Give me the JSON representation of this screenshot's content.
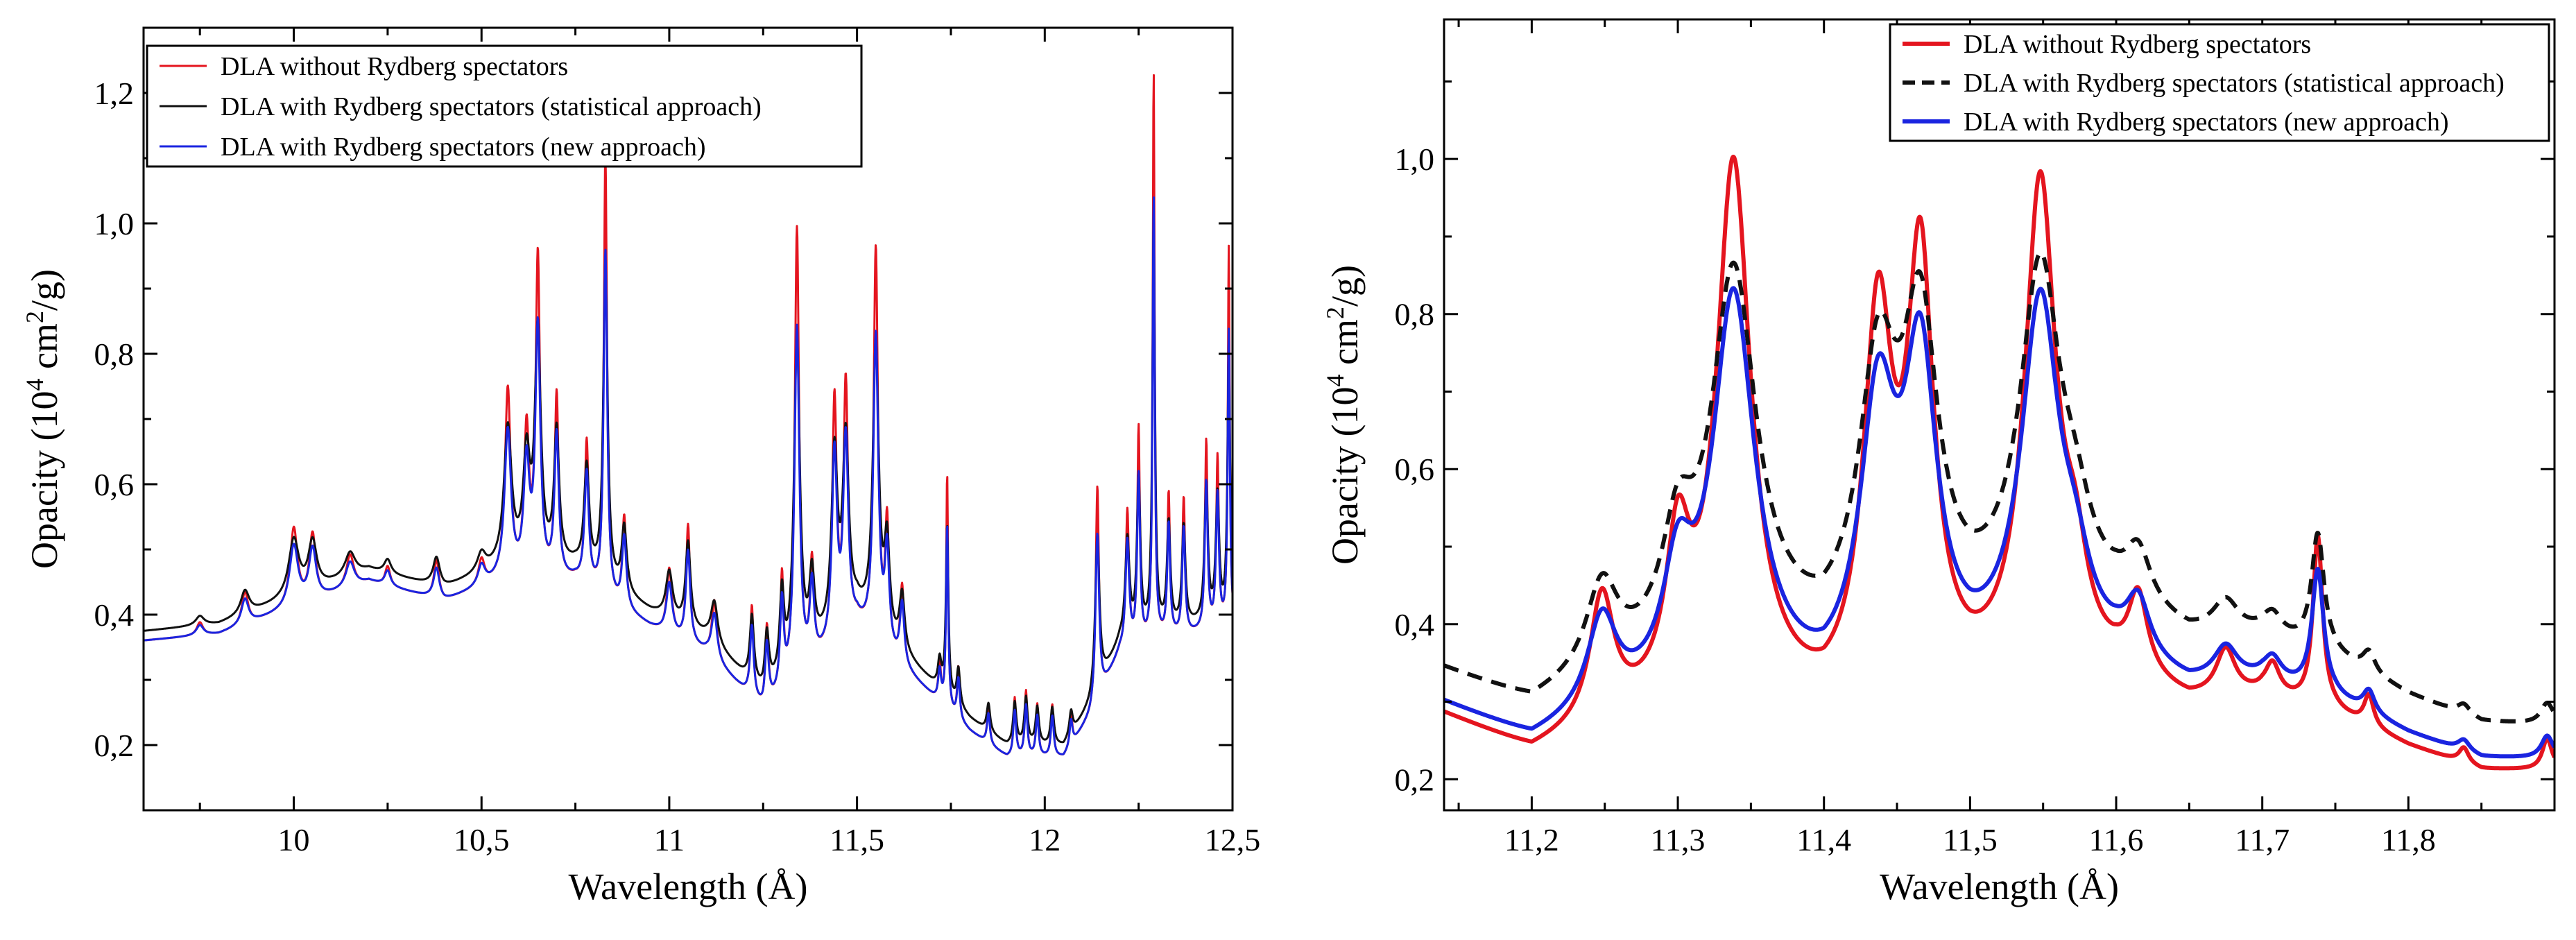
{
  "chart_data": [
    {
      "type": "line",
      "title": "",
      "xlabel": "Wavelength (Å)",
      "ylabel_main": "Opacity (10",
      "ylabel_sup1": "4",
      "ylabel_mid": " cm",
      "ylabel_sup2": "2",
      "ylabel_end": "/g)",
      "xlim": [
        9.6,
        12.5
      ],
      "ylim": [
        0.1,
        1.3
      ],
      "xticks": [
        10,
        10.5,
        11,
        11.5,
        12,
        12.5
      ],
      "xtick_labels": [
        "10",
        "10,5",
        "11",
        "11,5",
        "12",
        "12,5"
      ],
      "yticks": [
        0.2,
        0.4,
        0.6,
        0.8,
        1.0,
        1.2
      ],
      "ytick_labels": [
        "0,2",
        "0,4",
        "0,6",
        "0,8",
        "1,0",
        "1,2"
      ],
      "legend_position": "top-left",
      "baseline": [
        [
          9.6,
          0.36
        ],
        [
          9.8,
          0.37
        ],
        [
          9.95,
          0.4
        ],
        [
          10.2,
          0.45
        ],
        [
          10.4,
          0.42
        ],
        [
          10.55,
          0.45
        ],
        [
          10.75,
          0.45
        ],
        [
          10.95,
          0.38
        ],
        [
          11.1,
          0.34
        ],
        [
          11.25,
          0.25
        ],
        [
          11.35,
          0.3
        ],
        [
          11.5,
          0.38
        ],
        [
          11.65,
          0.3
        ],
        [
          11.8,
          0.22
        ],
        [
          11.9,
          0.18
        ],
        [
          12.05,
          0.18
        ],
        [
          12.12,
          0.24
        ],
        [
          12.2,
          0.34
        ],
        [
          12.3,
          0.36
        ],
        [
          12.5,
          0.38
        ]
      ],
      "peaks": [
        [
          9.75,
          0.02,
          0.01
        ],
        [
          9.87,
          0.05,
          0.01
        ],
        [
          10.0,
          0.12,
          0.012
        ],
        [
          10.05,
          0.1,
          0.01
        ],
        [
          10.15,
          0.05,
          0.012
        ],
        [
          10.25,
          0.03,
          0.008
        ],
        [
          10.38,
          0.06,
          0.008
        ],
        [
          10.5,
          0.04,
          0.01
        ],
        [
          10.57,
          0.29,
          0.009
        ],
        [
          10.62,
          0.22,
          0.008
        ],
        [
          10.65,
          0.49,
          0.007
        ],
        [
          10.7,
          0.28,
          0.006
        ],
        [
          10.78,
          0.22,
          0.006
        ],
        [
          10.83,
          0.68,
          0.005
        ],
        [
          10.88,
          0.14,
          0.006
        ],
        [
          11.0,
          0.1,
          0.008
        ],
        [
          11.05,
          0.18,
          0.006
        ],
        [
          11.12,
          0.09,
          0.008
        ],
        [
          11.22,
          0.14,
          0.005
        ],
        [
          11.26,
          0.12,
          0.005
        ],
        [
          11.3,
          0.17,
          0.005
        ],
        [
          11.34,
          0.69,
          0.007
        ],
        [
          11.38,
          0.15,
          0.006
        ],
        [
          11.44,
          0.37,
          0.007
        ],
        [
          11.47,
          0.38,
          0.007
        ],
        [
          11.55,
          0.6,
          0.007
        ],
        [
          11.58,
          0.19,
          0.006
        ],
        [
          11.62,
          0.12,
          0.006
        ],
        [
          11.72,
          0.06,
          0.004
        ],
        [
          11.74,
          0.36,
          0.003
        ],
        [
          11.77,
          0.08,
          0.004
        ],
        [
          11.85,
          0.06,
          0.004
        ],
        [
          11.92,
          0.09,
          0.004
        ],
        [
          11.95,
          0.1,
          0.004
        ],
        [
          11.98,
          0.08,
          0.004
        ],
        [
          12.02,
          0.08,
          0.004
        ],
        [
          12.07,
          0.05,
          0.004
        ],
        [
          12.14,
          0.33,
          0.005
        ],
        [
          12.22,
          0.21,
          0.005
        ],
        [
          12.25,
          0.33,
          0.004
        ],
        [
          12.29,
          0.87,
          0.003
        ],
        [
          12.33,
          0.22,
          0.004
        ],
        [
          12.37,
          0.21,
          0.004
        ],
        [
          12.43,
          0.29,
          0.004
        ],
        [
          12.46,
          0.26,
          0.004
        ],
        [
          12.49,
          0.58,
          0.003
        ]
      ],
      "series": [
        {
          "name": "DLA without Rydberg spectators",
          "color": "#e4151f",
          "dash": "",
          "width": 3,
          "amp": 1.0,
          "broad": 1.0,
          "shift": 0.0
        },
        {
          "name": "DLA with Rydberg spectators (statistical approach)",
          "color": "#111111",
          "dash": "",
          "width": 3,
          "amp": 0.72,
          "broad": 1.35,
          "shift": 0.03
        },
        {
          "name": "DLA with Rydberg spectators (new approach)",
          "color": "#1a24e0",
          "dash": "",
          "width": 3,
          "amp": 0.78,
          "broad": 1.15,
          "shift": 0.0
        }
      ]
    },
    {
      "type": "line",
      "title": "",
      "xlabel": "Wavelength (Å)",
      "ylabel_main": "Opacity (10",
      "ylabel_sup1": "4",
      "ylabel_mid": " cm",
      "ylabel_sup2": "2",
      "ylabel_end": "/g)",
      "xlim": [
        11.14,
        11.9
      ],
      "ylim": [
        0.16,
        1.18
      ],
      "xticks": [
        11.2,
        11.3,
        11.4,
        11.5,
        11.6,
        11.7,
        11.8
      ],
      "xtick_labels": [
        "11,2",
        "11,3",
        "11,4",
        "11,5",
        "11,6",
        "11,7",
        "11,8"
      ],
      "yticks": [
        0.2,
        0.4,
        0.6,
        0.8,
        1.0
      ],
      "ytick_labels": [
        "0,2",
        "0,4",
        "0,6",
        "0,8",
        "1,0"
      ],
      "legend_position": "top-right",
      "baseline": [
        [
          11.14,
          0.28
        ],
        [
          11.2,
          0.23
        ],
        [
          11.25,
          0.26
        ],
        [
          11.3,
          0.28
        ],
        [
          11.35,
          0.3
        ],
        [
          11.4,
          0.27
        ],
        [
          11.45,
          0.3
        ],
        [
          11.5,
          0.3
        ],
        [
          11.55,
          0.32
        ],
        [
          11.6,
          0.32
        ],
        [
          11.65,
          0.29
        ],
        [
          11.7,
          0.3
        ],
        [
          11.75,
          0.28
        ],
        [
          11.8,
          0.24
        ],
        [
          11.85,
          0.21
        ],
        [
          11.9,
          0.21
        ]
      ],
      "peaks": [
        [
          11.248,
          0.16,
          0.01
        ],
        [
          11.3,
          0.19,
          0.01
        ],
        [
          11.338,
          0.68,
          0.014
        ],
        [
          11.437,
          0.47,
          0.012
        ],
        [
          11.466,
          0.53,
          0.011
        ],
        [
          11.548,
          0.63,
          0.013
        ],
        [
          11.572,
          0.1,
          0.01
        ],
        [
          11.615,
          0.1,
          0.008
        ],
        [
          11.675,
          0.06,
          0.008
        ],
        [
          11.707,
          0.04,
          0.006
        ],
        [
          11.738,
          0.22,
          0.004
        ],
        [
          11.773,
          0.04,
          0.004
        ],
        [
          11.838,
          0.02,
          0.004
        ],
        [
          11.895,
          0.04,
          0.004
        ]
      ],
      "series": [
        {
          "name": "DLA without Rydberg spectators",
          "color": "#e4151f",
          "dash": "",
          "width": 6,
          "amp": 1.0,
          "broad": 1.0,
          "shift": 0.0
        },
        {
          "name": "DLA with Rydberg spectators (statistical approach)",
          "color": "#111111",
          "dash": "22,14",
          "width": 6,
          "amp": 0.68,
          "broad": 1.3,
          "shift": 0.12
        },
        {
          "name": "DLA with Rydberg spectators (new approach)",
          "color": "#1a24e0",
          "dash": "",
          "width": 6,
          "amp": 0.72,
          "broad": 1.22,
          "shift": 0.03
        }
      ]
    }
  ]
}
